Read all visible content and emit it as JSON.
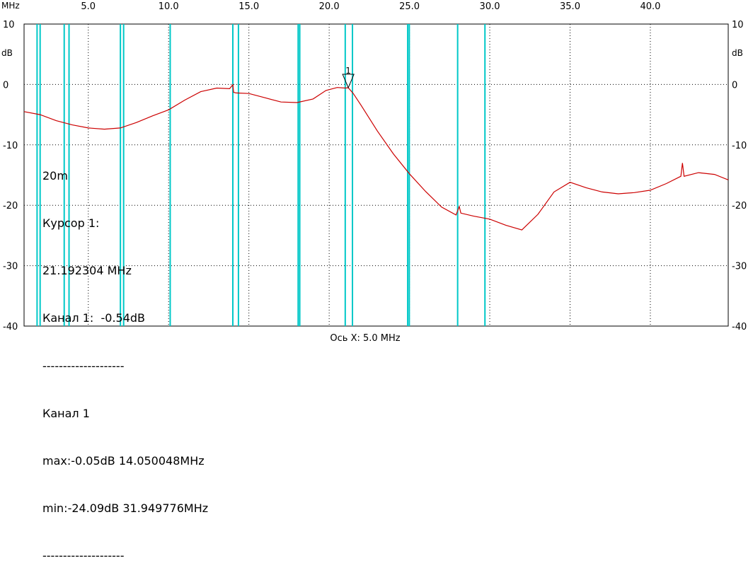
{
  "x_unit": "MHz",
  "y_unit": "dB",
  "x_axis_caption": "Ось X: 5.0 MHz",
  "readout": {
    "line1": "20m",
    "line2": "Курсор 1:",
    "line3": "21.192304 MHz",
    "line4": "Канал 1:  -0.54dB",
    "line5": "--------------------",
    "line6": "Канал 1",
    "line7": "max:-0.05dB 14.050048MHz",
    "line8": "min:-24.09dB 31.949776MHz",
    "line9": "--------------------"
  },
  "colors": {
    "trace": "#cc0000",
    "markers": "#00c8c8",
    "grid": "#000000",
    "cursor": "#000000"
  },
  "chart_data": {
    "type": "line",
    "title": "",
    "xlabel": "Ось X: 5.0 MHz",
    "ylabel": "dB",
    "xlim": [
      1.0,
      44.85
    ],
    "ylim": [
      -40,
      10
    ],
    "x_ticks": [
      5.0,
      10.0,
      15.0,
      20.0,
      25.0,
      30.0,
      35.0,
      40.0
    ],
    "x_tick_labels": [
      "5.0",
      "10.0",
      "15.0",
      "20.0",
      "25.0",
      "30.0",
      "35.0",
      "40.0"
    ],
    "y_ticks": [
      10,
      0,
      -10,
      -20,
      -30,
      -40
    ],
    "y_tick_labels": [
      "10",
      "0",
      "-10",
      "-20",
      "-30",
      "-40"
    ],
    "grid": true,
    "band_markers_mhz": [
      1.81,
      2.0,
      3.5,
      3.8,
      7.0,
      7.2,
      10.1,
      14.0,
      14.35,
      18.068,
      18.168,
      21.0,
      21.45,
      24.89,
      24.99,
      28.0,
      29.7
    ],
    "cursor": {
      "label": "1",
      "x": 21.19,
      "y": -0.54
    },
    "series": [
      {
        "x": [
          1.0,
          2.0,
          3.0,
          4.0,
          5.0,
          6.0,
          7.0,
          8.0,
          9.0,
          10.0,
          11.0,
          12.0,
          13.0,
          13.8,
          14.0,
          14.05,
          14.2,
          15.0,
          16.0,
          17.0,
          18.0,
          19.0,
          19.8,
          20.5,
          21.0,
          21.19,
          21.5,
          22.0,
          23.0,
          24.0,
          25.0,
          26.0,
          27.0,
          27.9,
          28.1,
          28.2,
          29.0,
          30.0,
          31.0,
          32.0,
          33.0,
          34.0,
          35.0,
          36.0,
          37.0,
          38.0,
          39.0,
          40.0,
          41.0,
          41.9,
          42.0,
          42.1,
          43.0,
          44.0,
          44.85
        ],
        "y": [
          -4.5,
          -5.0,
          -6.0,
          -6.7,
          -7.2,
          -7.4,
          -7.2,
          -6.3,
          -5.2,
          -4.2,
          -2.6,
          -1.2,
          -0.6,
          -0.7,
          -0.05,
          -1.3,
          -1.4,
          -1.5,
          -2.2,
          -2.9,
          -3.0,
          -2.4,
          -1.0,
          -0.5,
          -0.6,
          -0.54,
          -1.5,
          -3.5,
          -7.7,
          -11.5,
          -14.8,
          -17.7,
          -20.3,
          -21.6,
          -20.2,
          -21.3,
          -21.8,
          -22.3,
          -23.3,
          -24.09,
          -21.5,
          -17.8,
          -16.2,
          -17.1,
          -17.8,
          -18.1,
          -17.9,
          -17.5,
          -16.4,
          -15.2,
          -13.0,
          -15.2,
          -14.6,
          -14.9,
          -15.8
        ]
      }
    ]
  }
}
